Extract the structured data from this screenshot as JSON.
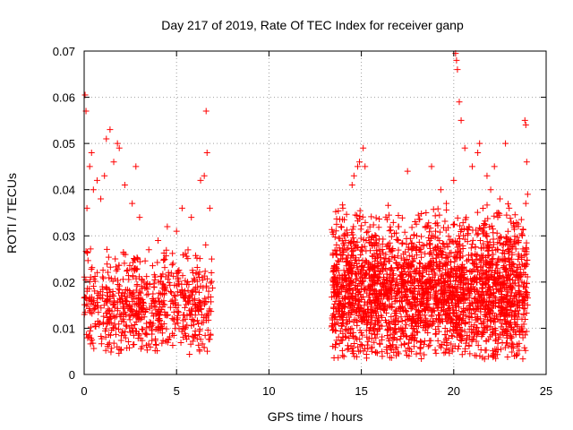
{
  "chart_data": {
    "type": "scatter",
    "title": "Day 217 of 2019, Rate Of TEC Index for receiver ganp",
    "xlabel": "GPS time / hours",
    "ylabel": "ROTI / TECUs",
    "xlim": [
      0,
      25
    ],
    "ylim": [
      0,
      0.07
    ],
    "x_ticks": [
      0,
      5,
      10,
      15,
      20,
      25
    ],
    "x_tick_labels": [
      "0",
      "5",
      "10",
      "15",
      "20",
      "25"
    ],
    "y_ticks": [
      0,
      0.01,
      0.02,
      0.03,
      0.04,
      0.05,
      0.06,
      0.07
    ],
    "y_tick_labels": [
      "0",
      "0.01",
      "0.02",
      "0.03",
      "0.04",
      "0.05",
      "0.06",
      "0.07"
    ],
    "grid": true,
    "marker": "+",
    "color": "#ff0000",
    "series": [
      {
        "name": "ROTI",
        "points": [
          [
            0.05,
            0.0605
          ],
          [
            0.1,
            0.057
          ],
          [
            0.15,
            0.036
          ],
          [
            0.3,
            0.045
          ],
          [
            0.4,
            0.048
          ],
          [
            0.5,
            0.04
          ],
          [
            0.7,
            0.042
          ],
          [
            0.9,
            0.038
          ],
          [
            1.1,
            0.043
          ],
          [
            1.2,
            0.051
          ],
          [
            1.4,
            0.053
          ],
          [
            1.6,
            0.046
          ],
          [
            1.8,
            0.05
          ],
          [
            1.9,
            0.049
          ],
          [
            2.2,
            0.041
          ],
          [
            2.6,
            0.037
          ],
          [
            2.8,
            0.045
          ],
          [
            3.0,
            0.034
          ],
          [
            3.5,
            0.027
          ],
          [
            4.0,
            0.029
          ],
          [
            4.5,
            0.032
          ],
          [
            5.0,
            0.031
          ],
          [
            5.3,
            0.036
          ],
          [
            5.8,
            0.034
          ],
          [
            6.3,
            0.042
          ],
          [
            6.5,
            0.043
          ],
          [
            6.6,
            0.057
          ],
          [
            6.65,
            0.048
          ],
          [
            6.8,
            0.036
          ],
          [
            6.9,
            0.025
          ],
          [
            13.5,
            0.02
          ],
          [
            13.9,
            0.032
          ],
          [
            14.0,
            0.036
          ],
          [
            14.2,
            0.027
          ],
          [
            14.5,
            0.041
          ],
          [
            14.6,
            0.043
          ],
          [
            14.8,
            0.045
          ],
          [
            14.9,
            0.046
          ],
          [
            15.1,
            0.049
          ],
          [
            15.2,
            0.045
          ],
          [
            15.6,
            0.028
          ],
          [
            16.0,
            0.027
          ],
          [
            16.5,
            0.025
          ],
          [
            17.0,
            0.032
          ],
          [
            17.5,
            0.044
          ],
          [
            18.0,
            0.03
          ],
          [
            18.5,
            0.035
          ],
          [
            18.8,
            0.045
          ],
          [
            19.3,
            0.04
          ],
          [
            19.6,
            0.037
          ],
          [
            20.0,
            0.042
          ],
          [
            20.1,
            0.0695
          ],
          [
            20.15,
            0.068
          ],
          [
            20.2,
            0.066
          ],
          [
            20.3,
            0.059
          ],
          [
            20.4,
            0.055
          ],
          [
            20.6,
            0.049
          ],
          [
            21.0,
            0.045
          ],
          [
            21.3,
            0.048
          ],
          [
            21.4,
            0.05
          ],
          [
            21.8,
            0.043
          ],
          [
            22.0,
            0.04
          ],
          [
            22.2,
            0.045
          ],
          [
            22.5,
            0.038
          ],
          [
            22.8,
            0.05
          ],
          [
            23.0,
            0.036
          ],
          [
            23.5,
            0.026
          ],
          [
            23.85,
            0.055
          ],
          [
            23.9,
            0.054
          ],
          [
            23.95,
            0.046
          ],
          [
            24.0,
            0.039
          ],
          [
            23.9,
            0.037
          ]
        ],
        "dense_segments": [
          {
            "start": 0.0,
            "end": 7.0,
            "count": 700,
            "base": 0.013,
            "spread": 0.013,
            "floor": 0.004,
            "cap": 0.036
          },
          {
            "start": 13.4,
            "end": 24.0,
            "count": 2600,
            "base": 0.016,
            "spread": 0.016,
            "floor": 0.003,
            "cap": 0.04
          }
        ]
      }
    ]
  }
}
